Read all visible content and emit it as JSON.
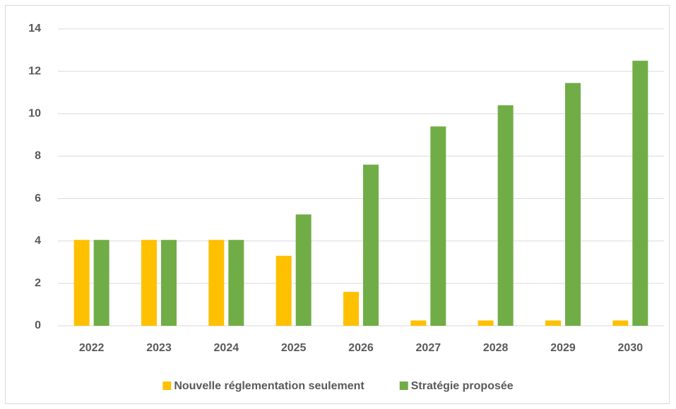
{
  "chart_data": {
    "type": "bar",
    "categories": [
      "2022",
      "2023",
      "2024",
      "2025",
      "2026",
      "2027",
      "2028",
      "2029",
      "2030"
    ],
    "series": [
      {
        "name": "Nouvelle réglementation seulement",
        "color": "#ffc000",
        "values": [
          4.05,
          4.05,
          4.05,
          3.3,
          1.6,
          0.25,
          0.25,
          0.25,
          0.25
        ]
      },
      {
        "name": "Stratégie proposée",
        "color": "#70ad47",
        "values": [
          4.05,
          4.05,
          4.05,
          5.25,
          7.6,
          9.4,
          10.4,
          11.45,
          12.5
        ]
      }
    ],
    "ylim": [
      0,
      14
    ],
    "yticks": [
      0,
      2,
      4,
      6,
      8,
      10,
      12,
      14
    ],
    "grid": true,
    "legend": "bottom"
  }
}
